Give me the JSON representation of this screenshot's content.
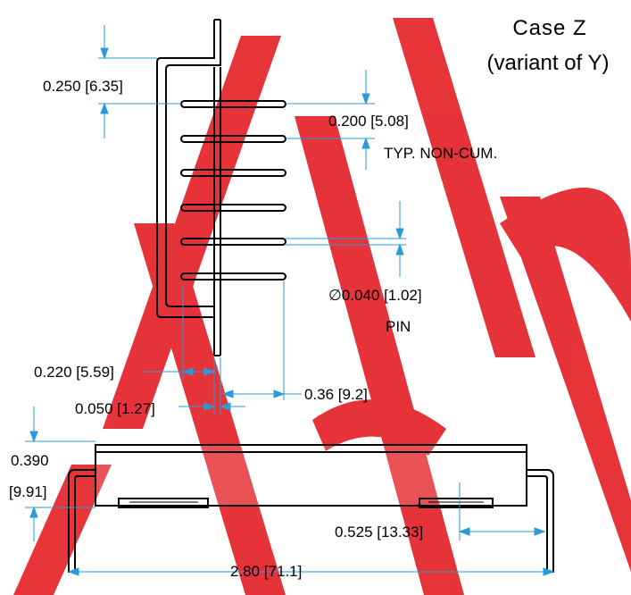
{
  "title": {
    "line1": "Case Z",
    "line2": "(variant of Y)"
  },
  "dimensions": {
    "top_offset": "0.250 [6.35]",
    "pin_pitch": "0.200 [5.08]",
    "pitch_note": "TYP. NON-CUM.",
    "pin_diameter": "∅0.040 [1.02]",
    "pin_label": "PIN",
    "offset_220": "0.220 [5.59]",
    "offset_050": "0.050 [1.27]",
    "pin_length": "0.36 [9.2]",
    "height_in": "0.390",
    "height_mm": "[9.91]",
    "pad_width": "0.525 [13.33]",
    "overall_length": "2.80 [71.1]"
  },
  "colors": {
    "line": "#000000",
    "dimension": "#2a9bd6",
    "watermark": "#e31e24"
  },
  "watermark_text": "A"
}
